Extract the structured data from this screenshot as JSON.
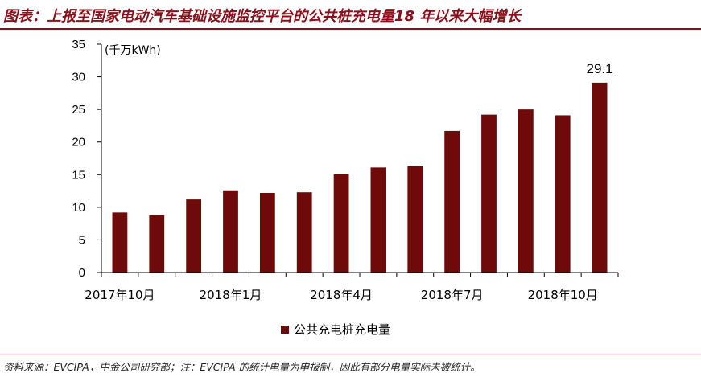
{
  "header": {
    "title": "图表：上报至国家电动汽车基础设施监控平台的公共桩充电量18 年以来大幅增长"
  },
  "footer": {
    "source": "资料来源：EVCIPA，中金公司研究部；注：EVCIPA 的统计电量为申报制，因此有部分电量实际未被统计。"
  },
  "colors": {
    "accent": "#8b0f1a",
    "bar": "#6e0a0a",
    "axis": "#000000"
  },
  "chart_data": {
    "type": "bar",
    "unit_label": "(千万kWh)",
    "categories": [
      "2017年10月",
      "2017年11月",
      "2017年12月",
      "2018年1月",
      "2018年2月",
      "2018年3月",
      "2018年4月",
      "2018年5月",
      "2018年6月",
      "2018年7月",
      "2018年8月",
      "2018年9月",
      "2018年10月",
      "2018年11月"
    ],
    "x_tick_labels": [
      "2017年10月",
      "2018年1月",
      "2018年4月",
      "2018年7月",
      "2018年10月"
    ],
    "x_tick_label_indices": [
      0,
      3,
      6,
      9,
      12
    ],
    "series": [
      {
        "name": "公共充电桩充电量",
        "values": [
          9.2,
          8.8,
          11.2,
          12.6,
          12.2,
          12.3,
          15.1,
          16.1,
          16.3,
          21.7,
          24.2,
          25.0,
          24.1,
          29.1
        ]
      }
    ],
    "data_labels": [
      {
        "index": 13,
        "text": "29.1"
      }
    ],
    "ylim": [
      0,
      35
    ],
    "yticks": [
      0,
      5,
      10,
      15,
      20,
      25,
      30,
      35
    ],
    "grid": false,
    "legend": "bottom-center"
  }
}
